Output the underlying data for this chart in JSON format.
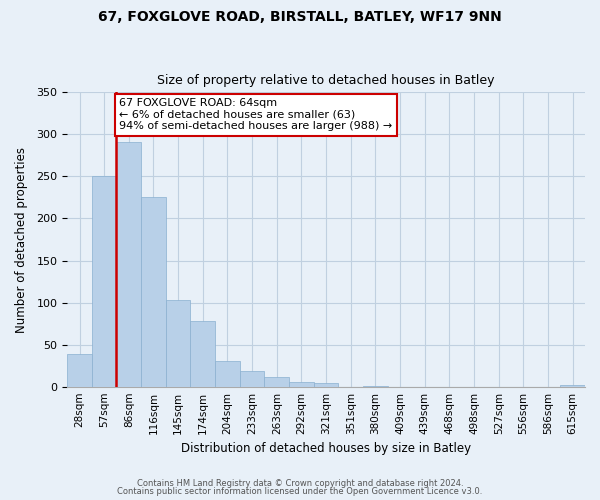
{
  "title": "67, FOXGLOVE ROAD, BIRSTALL, BATLEY, WF17 9NN",
  "subtitle": "Size of property relative to detached houses in Batley",
  "xlabel": "Distribution of detached houses by size in Batley",
  "ylabel": "Number of detached properties",
  "bar_labels": [
    "28sqm",
    "57sqm",
    "86sqm",
    "116sqm",
    "145sqm",
    "174sqm",
    "204sqm",
    "233sqm",
    "263sqm",
    "292sqm",
    "321sqm",
    "351sqm",
    "380sqm",
    "409sqm",
    "439sqm",
    "468sqm",
    "498sqm",
    "527sqm",
    "556sqm",
    "586sqm",
    "615sqm"
  ],
  "bar_values": [
    39,
    250,
    291,
    225,
    103,
    78,
    30,
    19,
    12,
    5,
    4,
    0,
    1,
    0,
    0,
    0,
    0,
    0,
    0,
    0,
    2
  ],
  "bar_color": "#b8d0e8",
  "bar_edge_color": "#8ab0d0",
  "highlight_color": "#cc0000",
  "vline_bar_index": 1,
  "annotation_title": "67 FOXGLOVE ROAD: 64sqm",
  "annotation_line1": "← 6% of detached houses are smaller (63)",
  "annotation_line2": "94% of semi-detached houses are larger (988) →",
  "annotation_box_facecolor": "#ffffff",
  "annotation_box_edgecolor": "#cc0000",
  "ylim": [
    0,
    350
  ],
  "bg_color": "#e8f0f8",
  "plot_bg_color": "#e8f0f8",
  "footer1": "Contains HM Land Registry data © Crown copyright and database right 2024.",
  "footer2": "Contains public sector information licensed under the Open Government Licence v3.0."
}
